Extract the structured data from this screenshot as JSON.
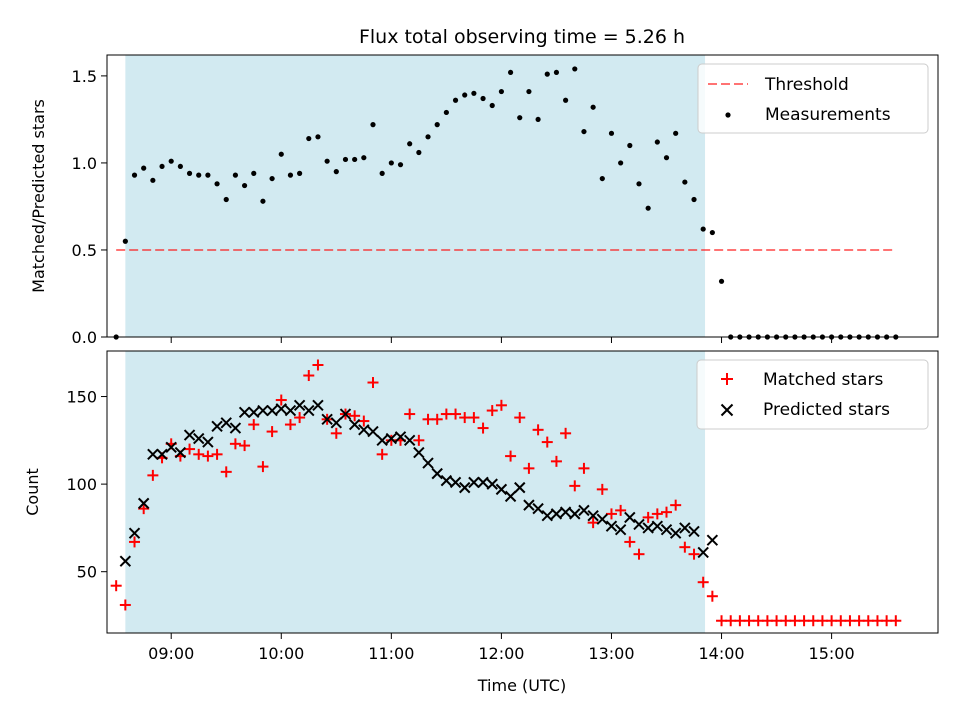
{
  "title": "Flux total observing time = 5.26 h",
  "colors": {
    "band": "#add8e6",
    "threshold": "#ff0000",
    "matched": "#ff0000",
    "predicted": "#000000",
    "measurement": "#000000"
  },
  "chart_data": [
    {
      "type": "scatter",
      "ylabel": "Matched/Predicted stars",
      "xlabel": "",
      "xlim": [
        "08:25",
        "15:58"
      ],
      "ylim": [
        0,
        1.62
      ],
      "yticks": [
        0.0,
        0.5,
        1.0,
        1.5
      ],
      "ytick_labels": [
        "0.0",
        "0.5",
        "1.0",
        "1.5"
      ],
      "grid": false,
      "legend": "top-right",
      "shaded_region": {
        "start": "08:35",
        "end": "13:51",
        "color": "#add8e6"
      },
      "threshold": {
        "name": "Threshold",
        "y": 0.5,
        "x_start": "08:30",
        "x_end": "15:35",
        "style": "dashed"
      },
      "series": [
        {
          "name": "Measurements",
          "marker": "dot",
          "x": [
            "08:30",
            "08:35",
            "08:40",
            "08:45",
            "08:50",
            "08:55",
            "09:00",
            "09:05",
            "09:10",
            "09:15",
            "09:20",
            "09:25",
            "09:30",
            "09:35",
            "09:40",
            "09:45",
            "09:50",
            "09:55",
            "10:00",
            "10:05",
            "10:10",
            "10:15",
            "10:20",
            "10:25",
            "10:30",
            "10:35",
            "10:40",
            "10:45",
            "10:50",
            "10:55",
            "11:00",
            "11:05",
            "11:10",
            "11:15",
            "11:20",
            "11:25",
            "11:30",
            "11:35",
            "11:40",
            "11:45",
            "11:50",
            "11:55",
            "12:00",
            "12:05",
            "12:10",
            "12:15",
            "12:20",
            "12:25",
            "12:30",
            "12:35",
            "12:40",
            "12:45",
            "12:50",
            "12:55",
            "13:00",
            "13:05",
            "13:10",
            "13:15",
            "13:20",
            "13:25",
            "13:30",
            "13:35",
            "13:40",
            "13:45",
            "13:50",
            "13:55",
            "14:00",
            "14:05",
            "14:10",
            "14:15",
            "14:20",
            "14:25",
            "14:30",
            "14:35",
            "14:40",
            "14:45",
            "14:50",
            "14:55",
            "15:00",
            "15:05",
            "15:10",
            "15:15",
            "15:20",
            "15:25",
            "15:30",
            "15:35"
          ],
          "y": [
            0.0,
            0.55,
            0.93,
            0.97,
            0.9,
            0.98,
            1.01,
            0.98,
            0.94,
            0.93,
            0.93,
            0.88,
            0.79,
            0.93,
            0.87,
            0.94,
            0.78,
            0.91,
            1.05,
            0.93,
            0.94,
            1.14,
            1.15,
            1.01,
            0.95,
            1.02,
            1.02,
            1.03,
            1.22,
            0.94,
            1.0,
            0.99,
            1.11,
            1.06,
            1.15,
            1.22,
            1.29,
            1.36,
            1.39,
            1.4,
            1.37,
            1.33,
            1.41,
            1.52,
            1.26,
            1.41,
            1.25,
            1.51,
            1.52,
            1.36,
            1.54,
            1.18,
            1.32,
            0.91,
            1.17,
            1.0,
            1.1,
            0.88,
            0.74,
            1.12,
            1.03,
            1.17,
            0.89,
            0.79,
            0.62,
            0.6,
            0.32,
            0.0,
            0.0,
            0.0,
            0.0,
            0.0,
            0.0,
            0.0,
            0.0,
            0.0,
            0.0,
            0.0,
            0.0,
            0.0,
            0.0,
            0.0,
            0.0,
            0.0,
            0.0,
            0.0
          ]
        }
      ]
    },
    {
      "type": "scatter",
      "ylabel": "Count",
      "xlabel": "Time (UTC)",
      "xlim": [
        "08:25",
        "15:58"
      ],
      "ylim": [
        15,
        176
      ],
      "yticks": [
        50,
        100,
        150
      ],
      "ytick_labels": [
        "50",
        "100",
        "150"
      ],
      "xticks": [
        "09:00",
        "10:00",
        "11:00",
        "12:00",
        "13:00",
        "14:00",
        "15:00"
      ],
      "xtick_labels": [
        "09:00",
        "10:00",
        "11:00",
        "12:00",
        "13:00",
        "14:00",
        "15:00"
      ],
      "grid": false,
      "legend": "top-right",
      "shaded_region": {
        "start": "08:35",
        "end": "13:51",
        "color": "#add8e6"
      },
      "series": [
        {
          "name": "Matched stars",
          "marker": "plus",
          "x": [
            "08:30",
            "08:35",
            "08:40",
            "08:45",
            "08:50",
            "08:55",
            "09:00",
            "09:05",
            "09:10",
            "09:15",
            "09:20",
            "09:25",
            "09:30",
            "09:35",
            "09:40",
            "09:45",
            "09:50",
            "09:55",
            "10:00",
            "10:05",
            "10:10",
            "10:15",
            "10:20",
            "10:25",
            "10:30",
            "10:35",
            "10:40",
            "10:45",
            "10:50",
            "10:55",
            "11:00",
            "11:05",
            "11:10",
            "11:15",
            "11:20",
            "11:25",
            "11:30",
            "11:35",
            "11:40",
            "11:45",
            "11:50",
            "11:55",
            "12:00",
            "12:05",
            "12:10",
            "12:15",
            "12:20",
            "12:25",
            "12:30",
            "12:35",
            "12:40",
            "12:45",
            "12:50",
            "12:55",
            "13:00",
            "13:05",
            "13:10",
            "13:15",
            "13:20",
            "13:25",
            "13:30",
            "13:35",
            "13:40",
            "13:45",
            "13:50",
            "13:55",
            "14:00",
            "14:05",
            "14:10",
            "14:15",
            "14:20",
            "14:25",
            "14:30",
            "14:35",
            "14:40",
            "14:45",
            "14:50",
            "14:55",
            "15:00",
            "15:05",
            "15:10",
            "15:15",
            "15:20",
            "15:25",
            "15:30",
            "15:35"
          ],
          "y": [
            42,
            31,
            67,
            86,
            105,
            115,
            123,
            116,
            120,
            117,
            116,
            117,
            107,
            123,
            122,
            134,
            110,
            130,
            148,
            134,
            138,
            162,
            168,
            137,
            129,
            140,
            139,
            136,
            158,
            117,
            125,
            125,
            140,
            125,
            137,
            137,
            140,
            140,
            138,
            138,
            132,
            142,
            145,
            116,
            138,
            109,
            131,
            124,
            113,
            129,
            99,
            109,
            78,
            97,
            83,
            85,
            67,
            60,
            81,
            83,
            84,
            88,
            64,
            60,
            44,
            36,
            22,
            22,
            22,
            22,
            22,
            22,
            22,
            22,
            22,
            22,
            22,
            22,
            22,
            22,
            22,
            22,
            22,
            22,
            22,
            22
          ]
        },
        {
          "name": "Predicted stars",
          "marker": "x",
          "x": [
            "08:35",
            "08:40",
            "08:45",
            "08:50",
            "08:55",
            "09:00",
            "09:05",
            "09:10",
            "09:15",
            "09:20",
            "09:25",
            "09:30",
            "09:35",
            "09:40",
            "09:45",
            "09:50",
            "09:55",
            "10:00",
            "10:05",
            "10:10",
            "10:15",
            "10:20",
            "10:25",
            "10:30",
            "10:35",
            "10:40",
            "10:45",
            "10:50",
            "10:55",
            "11:00",
            "11:05",
            "11:10",
            "11:15",
            "11:20",
            "11:25",
            "11:30",
            "11:35",
            "11:40",
            "11:45",
            "11:50",
            "11:55",
            "12:00",
            "12:05",
            "12:10",
            "12:15",
            "12:20",
            "12:25",
            "12:30",
            "12:35",
            "12:40",
            "12:45",
            "12:50",
            "12:55",
            "13:00",
            "13:05",
            "13:10",
            "13:15",
            "13:20",
            "13:25",
            "13:30",
            "13:35",
            "13:40",
            "13:45",
            "13:50",
            "13:55"
          ],
          "y": [
            56,
            72,
            89,
            117,
            117,
            121,
            118,
            128,
            126,
            124,
            133,
            135,
            132,
            141,
            141,
            142,
            142,
            143,
            142,
            145,
            142,
            145,
            137,
            135,
            140,
            134,
            131,
            130,
            125,
            126,
            127,
            125,
            118,
            112,
            106,
            102,
            101,
            98,
            101,
            101,
            100,
            97,
            93,
            98,
            88,
            86,
            82,
            83,
            84,
            83,
            85,
            82,
            80,
            76,
            74,
            81,
            77,
            75,
            76,
            74,
            72,
            75,
            73,
            61,
            68
          ]
        }
      ]
    }
  ]
}
